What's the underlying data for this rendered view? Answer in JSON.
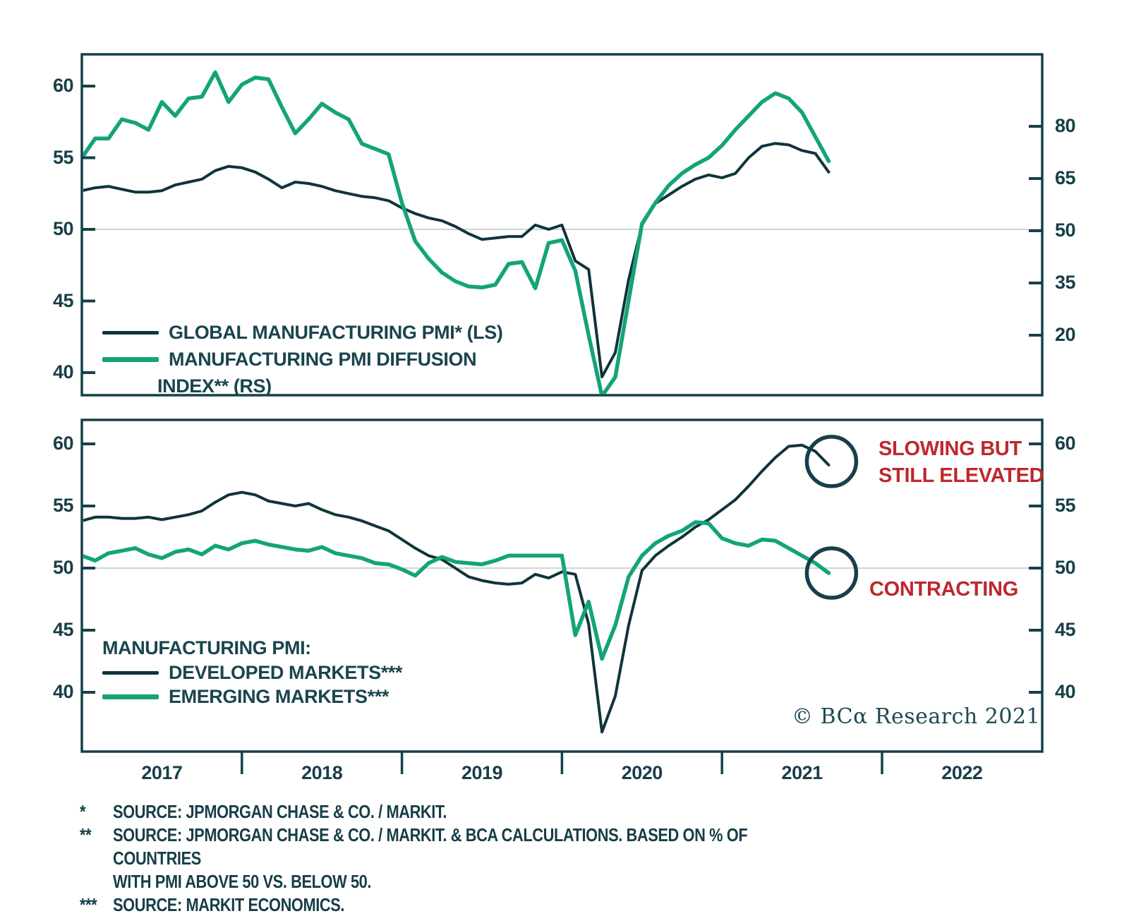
{
  "colors": {
    "line_navy": "#10343C",
    "line_green": "#13A478",
    "text_navy": "#1A454E",
    "annotation_red": "#BE272D",
    "grid_gray": "#C2C6C6",
    "axis_frame": "#16404A"
  },
  "chart_data": {
    "type": "line",
    "x_axis": {
      "unit": "month",
      "start": "2017-01",
      "end": "2021-09",
      "year_labels": [
        "2017",
        "2018",
        "2019",
        "2020",
        "2021",
        "2022"
      ]
    },
    "reference_line": 50,
    "panels": [
      {
        "name": "global-pmi-panel",
        "left_axis": {
          "ticks": [
            60,
            55,
            50,
            45,
            40
          ],
          "ylim": [
            38.4,
            62.2
          ]
        },
        "right_axis": {
          "ticks": [
            80,
            65,
            50,
            35,
            20
          ],
          "ylim": [
            2.8,
            100.7
          ]
        },
        "grid": "reference-line-50-only",
        "legend_position": "bottom-left-inside",
        "series": [
          {
            "name": "GLOBAL MANUFACTURING PMI* (LS)",
            "axis": "left",
            "color": "#10343C",
            "values": [
              52.7,
              52.9,
              53.0,
              52.8,
              52.6,
              52.6,
              52.7,
              53.1,
              53.3,
              53.5,
              54.1,
              54.4,
              54.3,
              54.0,
              53.5,
              52.9,
              53.3,
              53.2,
              53.0,
              52.7,
              52.5,
              52.3,
              52.2,
              52.0,
              51.5,
              51.1,
              50.8,
              50.6,
              50.2,
              49.7,
              49.3,
              49.4,
              49.5,
              49.5,
              50.3,
              50.0,
              50.3,
              47.8,
              47.2,
              39.7,
              41.4,
              46.5,
              50.3,
              51.8,
              52.4,
              53.0,
              53.5,
              53.8,
              53.6,
              53.9,
              55.0,
              55.8,
              56.0,
              55.9,
              55.5,
              55.3,
              54.0
            ]
          },
          {
            "name": "MANUFACTURING PMI DIFFUSION INDEX** (RS)",
            "axis": "right",
            "color": "#13A478",
            "values": [
              71,
              76.5,
              76.5,
              82,
              81,
              79,
              87,
              83,
              88,
              88.5,
              95.5,
              87,
              92,
              94,
              93.5,
              85.5,
              78,
              82,
              86.5,
              84,
              82,
              75,
              73.5,
              72,
              58,
              47,
              42,
              38,
              35.5,
              34,
              33.7,
              34.5,
              40.5,
              41,
              33.5,
              46.5,
              47.3,
              38.5,
              20,
              2.5,
              8,
              30,
              52,
              58,
              63,
              66.5,
              69,
              71,
              74.5,
              79,
              83,
              87,
              89.5,
              88,
              84,
              77,
              70
            ]
          }
        ]
      },
      {
        "name": "dm-em-pmi-panel",
        "legend_title": "MANUFACTURING PMI:",
        "left_axis": {
          "ticks": [
            60,
            55,
            50,
            45,
            40
          ],
          "ylim": [
            35.2,
            61.9
          ]
        },
        "right_axis": {
          "ticks": [
            60,
            55,
            50,
            45,
            40
          ],
          "ylim": [
            35.2,
            61.9
          ]
        },
        "grid": "reference-line-50-only",
        "series": [
          {
            "name": "DEVELOPED MARKETS***",
            "axis": "left",
            "color": "#10343C",
            "values": [
              53.8,
              54.1,
              54.1,
              54.0,
              54.0,
              54.1,
              53.9,
              54.1,
              54.3,
              54.6,
              55.3,
              55.9,
              56.1,
              55.9,
              55.4,
              55.2,
              55.0,
              55.2,
              54.7,
              54.3,
              54.1,
              53.8,
              53.4,
              53.0,
              52.3,
              51.6,
              51.0,
              50.7,
              50.0,
              49.3,
              49.0,
              48.8,
              48.7,
              48.8,
              49.5,
              49.2,
              49.7,
              49.5,
              45.5,
              36.8,
              39.7,
              45.4,
              49.8,
              51.0,
              51.8,
              52.5,
              53.3,
              53.9,
              54.7,
              55.5,
              56.6,
              57.8,
              58.9,
              59.8,
              59.9,
              59.4,
              58.3
            ]
          },
          {
            "name": "EMERGING MARKETS***",
            "axis": "left",
            "color": "#13A478",
            "values": [
              51.0,
              50.6,
              51.2,
              51.4,
              51.6,
              51.1,
              50.8,
              51.3,
              51.5,
              51.1,
              51.8,
              51.5,
              52.0,
              52.2,
              51.9,
              51.7,
              51.5,
              51.4,
              51.7,
              51.2,
              51.0,
              50.8,
              50.4,
              50.3,
              49.9,
              49.4,
              50.4,
              50.9,
              50.5,
              50.4,
              50.3,
              50.6,
              51.0,
              51.0,
              51.0,
              51.0,
              51.0,
              44.6,
              47.3,
              42.7,
              45.4,
              49.3,
              51.0,
              52.0,
              52.6,
              53.0,
              53.7,
              53.6,
              52.4,
              52.0,
              51.8,
              52.3,
              52.2,
              51.6,
              51.0,
              50.4,
              49.6
            ]
          }
        ],
        "annotations": [
          {
            "text": "SLOWING BUT\nSTILL ELEVATED",
            "color": "#BE272D",
            "target": "end-of-developed-markets-line"
          },
          {
            "text": "CONTRACTING",
            "color": "#BE272D",
            "target": "end-of-emerging-markets-line"
          }
        ]
      }
    ]
  },
  "branding": {
    "copyright": "© BCα Research 2021"
  },
  "footnotes": [
    {
      "marker": "*",
      "lines": [
        "SOURCE: JPMORGAN CHASE & CO. / MARKIT."
      ]
    },
    {
      "marker": "**",
      "lines": [
        "SOURCE: JPMORGAN CHASE & CO. / MARKIT. & BCA CALCULATIONS. BASED ON % OF COUNTRIES",
        "WITH PMI ABOVE 50 VS. BELOW 50."
      ]
    },
    {
      "marker": "***",
      "lines": [
        "SOURCE: MARKIT ECONOMICS."
      ]
    }
  ]
}
